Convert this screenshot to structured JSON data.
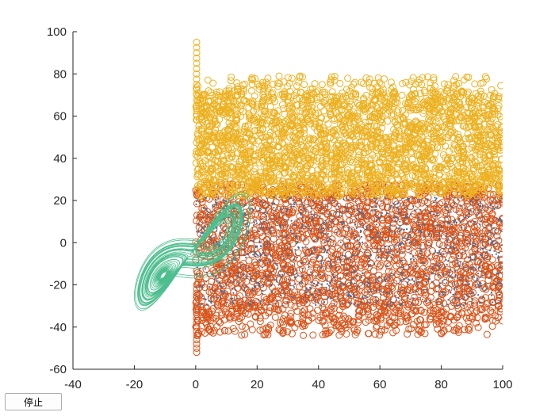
{
  "chart_data": {
    "type": "scatter",
    "title": "",
    "xlabel": "",
    "ylabel": "",
    "xlim": [
      -40,
      100
    ],
    "ylim": [
      -60,
      100
    ],
    "xticks": [
      -40,
      -20,
      0,
      20,
      40,
      60,
      80,
      100
    ],
    "yticks": [
      -60,
      -40,
      -20,
      0,
      20,
      40,
      60,
      80,
      100
    ],
    "grid": false,
    "legend": "none",
    "series": [
      {
        "marker": "circle",
        "color": "#D95319",
        "x_range": [
          0,
          100
        ],
        "band": [
          -38,
          28
        ],
        "spike_low": -53
      },
      {
        "marker": "circle",
        "color": "#EDB120",
        "x_range": [
          0,
          100
        ],
        "band": [
          22,
          72
        ],
        "spike_high": 95
      },
      {
        "marker": "dot",
        "color": "#4A6A9A",
        "x_range": [
          0,
          100
        ],
        "band": [
          -30,
          22
        ]
      },
      {
        "marker": "line",
        "color": "#4DBE8E",
        "shape": "lorenz-attractor",
        "x_extent": [
          -20,
          18
        ],
        "y_extent": [
          -32,
          24
        ]
      }
    ]
  },
  "controls": {
    "stop_label": "停止"
  }
}
